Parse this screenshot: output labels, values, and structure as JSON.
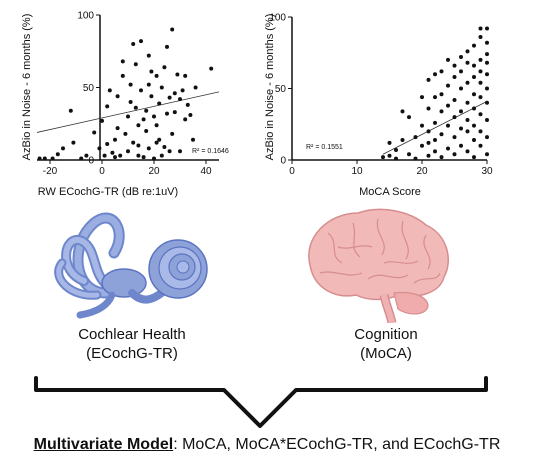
{
  "chart_data": [
    {
      "type": "scatter",
      "xlabel": "RW ECochG-TR (dB re:1uV)",
      "ylabel": "AzBio in Noise - 6 months (%)",
      "xlim": [
        -25,
        45
      ],
      "ylim": [
        0,
        100
      ],
      "xticks": [
        -20,
        0,
        20,
        40
      ],
      "yticks": [
        0,
        50,
        100
      ],
      "r2_label": "R² = 0.1646",
      "trend": {
        "x": [
          -25,
          45
        ],
        "y": [
          19,
          47
        ]
      },
      "points": [
        [
          -24,
          1
        ],
        [
          -22,
          1
        ],
        [
          -19,
          1
        ],
        [
          -17,
          4
        ],
        [
          -15,
          8
        ],
        [
          -12,
          34
        ],
        [
          -11,
          12
        ],
        [
          -8,
          1
        ],
        [
          -6,
          3
        ],
        [
          -3,
          19
        ],
        [
          -1,
          8
        ],
        [
          0,
          27
        ],
        [
          1,
          3
        ],
        [
          2,
          11
        ],
        [
          2,
          37
        ],
        [
          3,
          48
        ],
        [
          4,
          5
        ],
        [
          5,
          2
        ],
        [
          5,
          14
        ],
        [
          6,
          22
        ],
        [
          6,
          44
        ],
        [
          7,
          3
        ],
        [
          8,
          58
        ],
        [
          8,
          68
        ],
        [
          9,
          18
        ],
        [
          10,
          6
        ],
        [
          10,
          30
        ],
        [
          11,
          52
        ],
        [
          11,
          40
        ],
        [
          12,
          12
        ],
        [
          12,
          80
        ],
        [
          13,
          66
        ],
        [
          13,
          36
        ],
        [
          14,
          3
        ],
        [
          14,
          10
        ],
        [
          14,
          24
        ],
        [
          15,
          82
        ],
        [
          15,
          48
        ],
        [
          16,
          2
        ],
        [
          16,
          28
        ],
        [
          17,
          20
        ],
        [
          17,
          34
        ],
        [
          18,
          8
        ],
        [
          18,
          52
        ],
        [
          18,
          72
        ],
        [
          19,
          44
        ],
        [
          19,
          61
        ],
        [
          20,
          1
        ],
        [
          20,
          30
        ],
        [
          21,
          12
        ],
        [
          21,
          24
        ],
        [
          21,
          58
        ],
        [
          22,
          14
        ],
        [
          22,
          39
        ],
        [
          23,
          3
        ],
        [
          23,
          50
        ],
        [
          24,
          64
        ],
        [
          24,
          9
        ],
        [
          25,
          32
        ],
        [
          25,
          78
        ],
        [
          26,
          6
        ],
        [
          26,
          43
        ],
        [
          27,
          90
        ],
        [
          27,
          18
        ],
        [
          28,
          46
        ],
        [
          28,
          33
        ],
        [
          29,
          59
        ],
        [
          30,
          6
        ],
        [
          30,
          42
        ],
        [
          31,
          48
        ],
        [
          32,
          28
        ],
        [
          32,
          58
        ],
        [
          33,
          38
        ],
        [
          34,
          31
        ],
        [
          35,
          14
        ],
        [
          36,
          50
        ],
        [
          42,
          63
        ]
      ]
    },
    {
      "type": "scatter",
      "xlabel": "MoCA Score",
      "ylabel": "AzBio in Noise - 6 months (%)",
      "xlim": [
        0,
        30
      ],
      "ylim": [
        0,
        100
      ],
      "xticks": [
        0,
        10,
        20,
        30
      ],
      "yticks": [
        0,
        50,
        100
      ],
      "r2_label": "R² = 0.1551",
      "trend": {
        "x": [
          14,
          30
        ],
        "y": [
          4,
          41
        ]
      },
      "points": [
        [
          14,
          2
        ],
        [
          15,
          3
        ],
        [
          15,
          12
        ],
        [
          16,
          1
        ],
        [
          16,
          7
        ],
        [
          17,
          14
        ],
        [
          17,
          34
        ],
        [
          18,
          4
        ],
        [
          18,
          30
        ],
        [
          19,
          1
        ],
        [
          19,
          16
        ],
        [
          20,
          10
        ],
        [
          20,
          24
        ],
        [
          20,
          44
        ],
        [
          21,
          3
        ],
        [
          21,
          12
        ],
        [
          21,
          20
        ],
        [
          21,
          36
        ],
        [
          21,
          56
        ],
        [
          22,
          6
        ],
        [
          22,
          14
        ],
        [
          22,
          26
        ],
        [
          22,
          44
        ],
        [
          22,
          60
        ],
        [
          23,
          2
        ],
        [
          23,
          18
        ],
        [
          23,
          34
        ],
        [
          23,
          46
        ],
        [
          23,
          62
        ],
        [
          24,
          8
        ],
        [
          24,
          24
        ],
        [
          24,
          38
        ],
        [
          24,
          52
        ],
        [
          24,
          70
        ],
        [
          25,
          4
        ],
        [
          25,
          16
        ],
        [
          25,
          30
        ],
        [
          25,
          42
        ],
        [
          25,
          58
        ],
        [
          25,
          66
        ],
        [
          26,
          10
        ],
        [
          26,
          22
        ],
        [
          26,
          34
        ],
        [
          26,
          50
        ],
        [
          26,
          62
        ],
        [
          26,
          72
        ],
        [
          27,
          6
        ],
        [
          27,
          20
        ],
        [
          27,
          28
        ],
        [
          27,
          40
        ],
        [
          27,
          54
        ],
        [
          27,
          68
        ],
        [
          27,
          76
        ],
        [
          28,
          2
        ],
        [
          28,
          14
        ],
        [
          28,
          24
        ],
        [
          28,
          36
        ],
        [
          28,
          46
        ],
        [
          28,
          58
        ],
        [
          28,
          66
        ],
        [
          28,
          80
        ],
        [
          29,
          10
        ],
        [
          29,
          20
        ],
        [
          29,
          32
        ],
        [
          29,
          44
        ],
        [
          29,
          54
        ],
        [
          29,
          62
        ],
        [
          29,
          70
        ],
        [
          29,
          86
        ],
        [
          29,
          92
        ],
        [
          30,
          4
        ],
        [
          30,
          16
        ],
        [
          30,
          28
        ],
        [
          30,
          40
        ],
        [
          30,
          50
        ],
        [
          30,
          60
        ],
        [
          30,
          68
        ],
        [
          30,
          74
        ],
        [
          30,
          82
        ],
        [
          30,
          92
        ]
      ]
    }
  ],
  "captions": {
    "left_line1": "Cochlear Health",
    "left_line2": "(ECochG-TR)",
    "right_line1": "Cognition",
    "right_line2": "(MoCA)"
  },
  "footer": {
    "bold": "Multivariate Model",
    "rest": ": MoCA, MoCA*ECochG-TR, and ECochG-TR"
  },
  "colors": {
    "ear_blue": "#8EA2DA",
    "ear_blue_dark": "#5C74C0",
    "brain_pink": "#F2B9B9",
    "brain_line": "#D78D8D"
  }
}
